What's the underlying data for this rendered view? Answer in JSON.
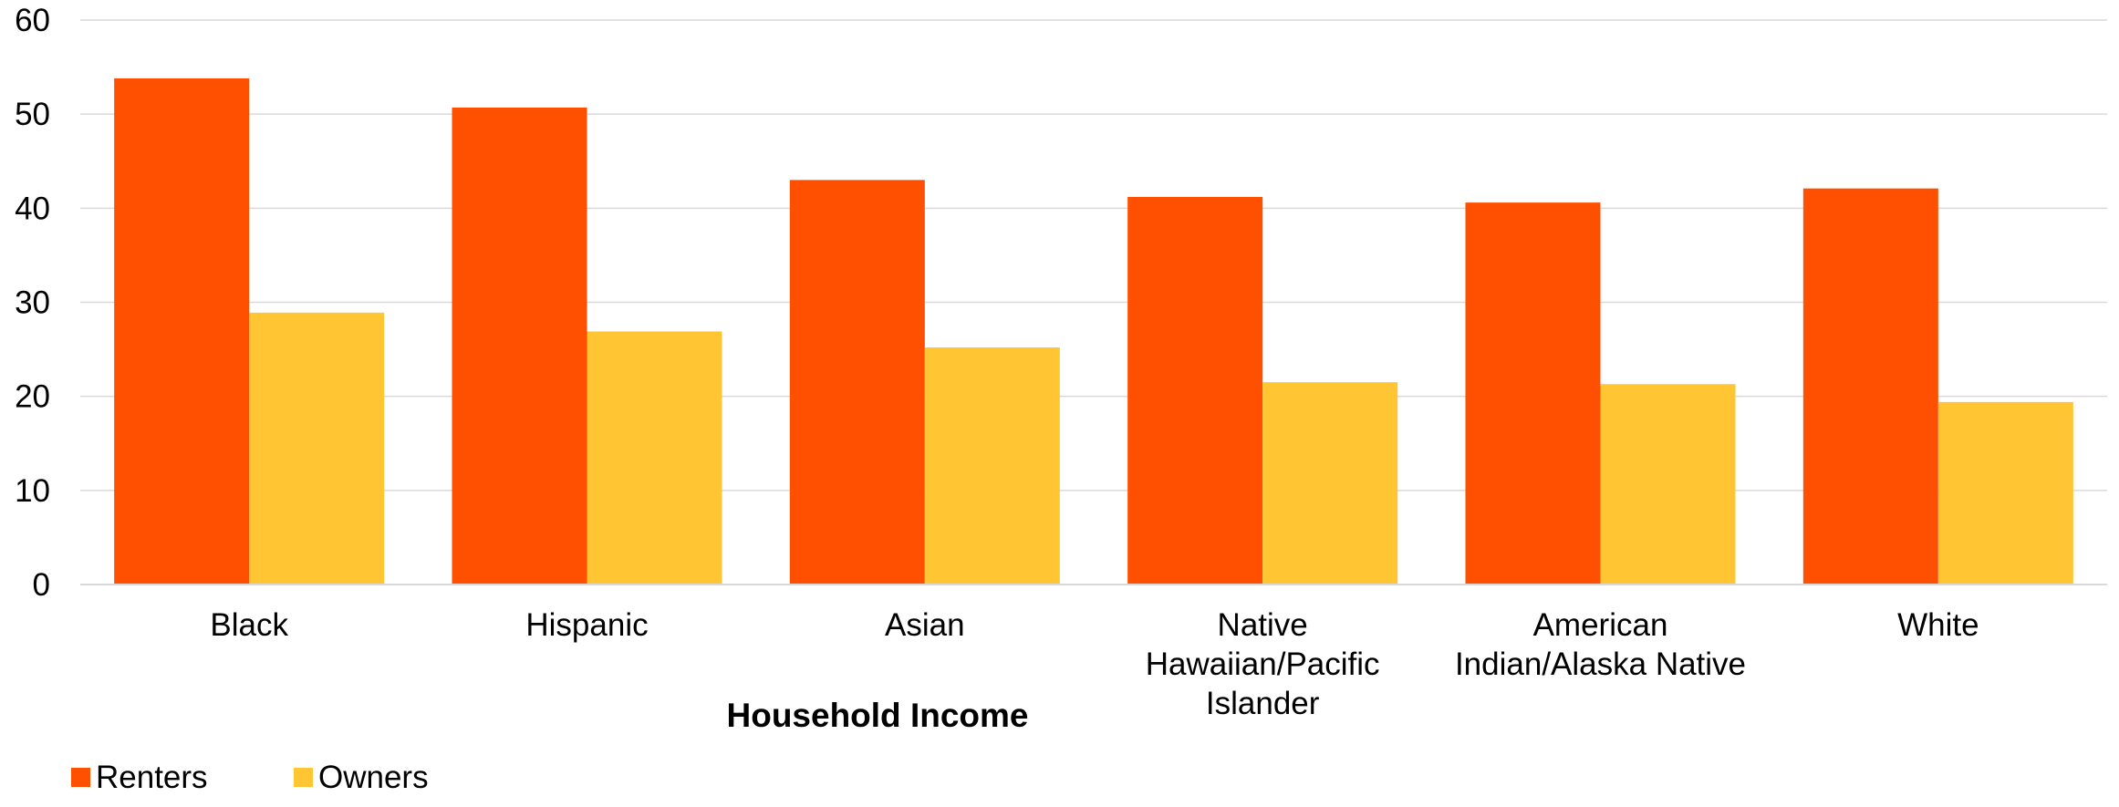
{
  "chart_data": {
    "type": "bar",
    "title": "",
    "xlabel": "Household Income",
    "ylabel": "",
    "ylim": [
      0,
      60
    ],
    "yticks": [
      0,
      10,
      20,
      30,
      40,
      50,
      60
    ],
    "categories": [
      [
        "Black"
      ],
      [
        "Hispanic"
      ],
      [
        "Asian"
      ],
      [
        "Native",
        "Hawaiian/Pacific",
        "Islander"
      ],
      [
        "American",
        "Indian/Alaska Native"
      ],
      [
        "White"
      ]
    ],
    "series": [
      {
        "name": "Renters",
        "color": "#FF4F00",
        "values": [
          53.8,
          50.7,
          43.0,
          41.2,
          40.6,
          42.1
        ]
      },
      {
        "name": "Owners",
        "color": "#FFC532",
        "values": [
          28.9,
          26.9,
          25.2,
          21.5,
          21.3,
          19.4
        ]
      }
    ],
    "grid": true,
    "legend_position": "bottom-left"
  }
}
